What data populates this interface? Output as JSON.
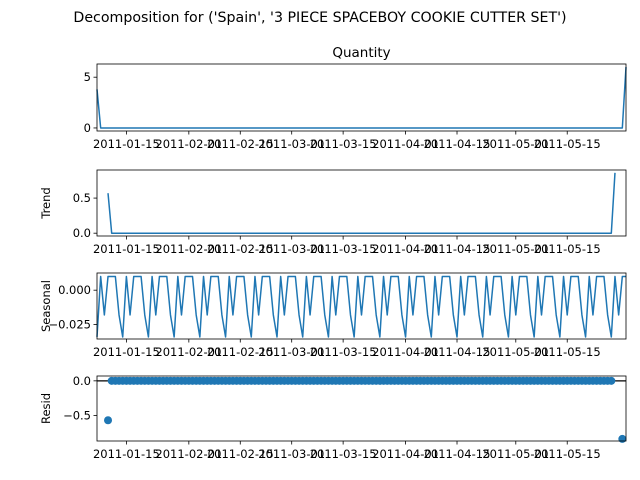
{
  "figure": {
    "suptitle": "Decomposition for ('Spain', '3 PIECE SPACEBOY COOKIE CUTTER SET')",
    "colors": {
      "line": "#1f77b4",
      "axis": "#000000",
      "background": "#ffffff"
    }
  },
  "chart_data": [
    {
      "type": "line",
      "panel": "observed",
      "title": "Quantity",
      "ylabel": "",
      "x_range": [
        "2011-01-07",
        "2011-05-31"
      ],
      "ylim": [
        -0.3,
        6.3
      ],
      "yticks": [
        0,
        5
      ],
      "ytick_labels": [
        "0",
        "5"
      ],
      "xticks": [
        "2011-01-15",
        "2011-02-01",
        "2011-02-15",
        "2011-03-01",
        "2011-03-15",
        "2011-04-01",
        "2011-04-15",
        "2011-05-01",
        "2011-05-15"
      ],
      "xtick_labels": [
        "2011-01-15",
        "2011-02-01",
        "2011-02-15",
        "2011-03-01",
        "2011-03-15",
        "2011-04-01",
        "2011-04-15",
        "2011-05-01",
        "2011-05-15"
      ],
      "points": [
        [
          "2011-01-07",
          3.8
        ],
        [
          "2011-01-08",
          0
        ],
        [
          "2011-05-30",
          0
        ],
        [
          "2011-05-31",
          6
        ]
      ]
    },
    {
      "type": "line",
      "panel": "trend",
      "title": "",
      "ylabel": "Trend",
      "x_range": [
        "2011-01-07",
        "2011-05-31"
      ],
      "ylim": [
        -0.04,
        0.9
      ],
      "yticks": [
        0,
        0.5
      ],
      "ytick_labels": [
        "0.0",
        "0.5"
      ],
      "xticks": [
        "2011-01-15",
        "2011-02-01",
        "2011-02-15",
        "2011-03-01",
        "2011-03-15",
        "2011-04-01",
        "2011-04-15",
        "2011-05-01",
        "2011-05-15"
      ],
      "xtick_labels": [
        "2011-01-15",
        "2011-02-01",
        "2011-02-15",
        "2011-03-01",
        "2011-03-15",
        "2011-04-01",
        "2011-04-15",
        "2011-05-01",
        "2011-05-15"
      ],
      "points": [
        [
          "2011-01-10",
          0.57
        ],
        [
          "2011-01-11",
          0
        ],
        [
          "2011-05-27",
          0
        ],
        [
          "2011-05-28",
          0.86
        ]
      ]
    },
    {
      "type": "line",
      "panel": "seasonal",
      "title": "",
      "ylabel": "Seasonal",
      "x_range": [
        "2011-01-07",
        "2011-05-31"
      ],
      "ylim": [
        -0.0355,
        0.0125
      ],
      "yticks": [
        0,
        -0.025
      ],
      "ytick_labels": [
        "0.000",
        "−0.025"
      ],
      "xticks": [
        "2011-01-15",
        "2011-02-01",
        "2011-02-15",
        "2011-03-01",
        "2011-03-15",
        "2011-04-01",
        "2011-04-15",
        "2011-05-01",
        "2011-05-15"
      ],
      "xtick_labels": [
        "2011-01-15",
        "2011-02-01",
        "2011-02-15",
        "2011-03-01",
        "2011-03-15",
        "2011-04-01",
        "2011-04-15",
        "2011-05-01",
        "2011-05-15"
      ],
      "start": "2011-01-07",
      "step_days": 1,
      "weekly_pattern": [
        -0.034,
        0.01,
        -0.018,
        0.01,
        0.01,
        0.01,
        -0.018
      ]
    },
    {
      "type": "scatter",
      "panel": "resid",
      "title": "",
      "ylabel": "Resid",
      "x_range": [
        "2011-01-07",
        "2011-05-31"
      ],
      "ylim": [
        -0.87,
        0.07
      ],
      "yticks": [
        0,
        -0.5
      ],
      "ytick_labels": [
        "0.0",
        "−0.5"
      ],
      "xticks": [
        "2011-01-15",
        "2011-02-01",
        "2011-02-15",
        "2011-03-01",
        "2011-03-15",
        "2011-04-01",
        "2011-04-15",
        "2011-05-01",
        "2011-05-15"
      ],
      "xtick_labels": [
        "2011-01-15",
        "2011-02-01",
        "2011-02-15",
        "2011-03-01",
        "2011-03-15",
        "2011-04-01",
        "2011-04-15",
        "2011-05-01",
        "2011-05-15"
      ],
      "baseline": 0,
      "zero_range": [
        "2011-01-11",
        "2011-05-27"
      ],
      "outliers": [
        [
          "2011-01-10",
          -0.57
        ],
        [
          "2011-05-30",
          -0.84
        ]
      ]
    }
  ]
}
